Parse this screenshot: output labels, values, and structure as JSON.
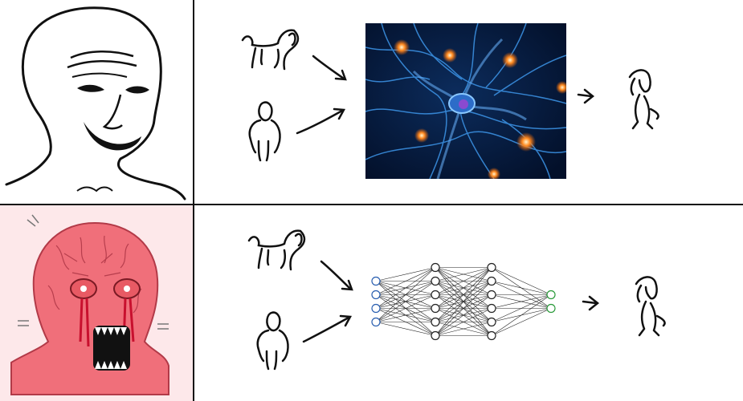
{
  "meme": {
    "top_row": {
      "left_character": "wojak-smiling",
      "inputs": [
        "dog-doodle",
        "human-doodle"
      ],
      "processor": "biological-neurons-photo",
      "output": "dog-human-hybrid-doodle"
    },
    "bottom_row": {
      "left_character": "wojak-enraged-red",
      "inputs": [
        "dog-doodle",
        "human-doodle"
      ],
      "processor": "artificial-neural-network",
      "output": "dog-human-hybrid-doodle",
      "network_layers": [
        4,
        6,
        6,
        2
      ]
    }
  },
  "colors": {
    "angry_face": "#f06f7a",
    "neuron_bg": "#061a3a",
    "neuron_fiber": "#3a8fe0",
    "synapse_glow": "#ff7a1a",
    "nn_input_node": "#2a5fb0",
    "nn_output_node": "#2a9a3a"
  }
}
